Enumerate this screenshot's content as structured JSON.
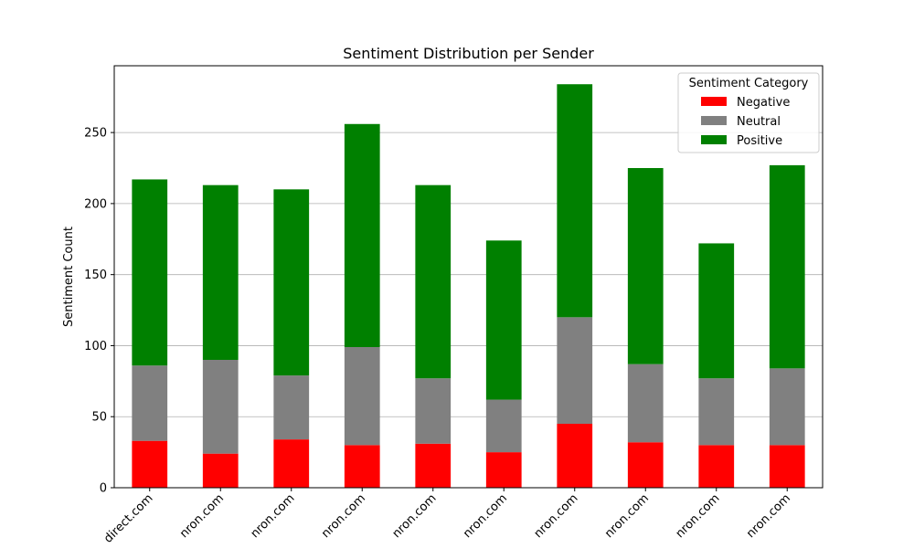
{
  "chart_data": {
    "type": "bar",
    "stacked": true,
    "title": "Sentiment Distribution per Sender",
    "xlabel": "",
    "ylabel": "Sentiment Count",
    "ylim": [
      0,
      297
    ],
    "yticks": [
      0,
      50,
      100,
      150,
      200,
      250
    ],
    "grid": "horizontal",
    "categories": [
      "direct.com",
      "nron.com",
      "nron.com",
      "nron.com",
      "nron.com",
      "nron.com",
      "nron.com",
      "nron.com",
      "nron.com",
      "nron.com"
    ],
    "series": [
      {
        "name": "Negative",
        "color": "#ff0000",
        "values": [
          33,
          24,
          34,
          30,
          31,
          25,
          45,
          32,
          30,
          30
        ]
      },
      {
        "name": "Neutral",
        "color": "#808080",
        "values": [
          53,
          66,
          45,
          69,
          46,
          37,
          75,
          55,
          47,
          54
        ]
      },
      {
        "name": "Positive",
        "color": "#008000",
        "values": [
          131,
          123,
          131,
          157,
          136,
          112,
          164,
          138,
          95,
          143
        ]
      }
    ],
    "legend": {
      "title": "Sentiment Category",
      "placement": "top-right"
    }
  }
}
